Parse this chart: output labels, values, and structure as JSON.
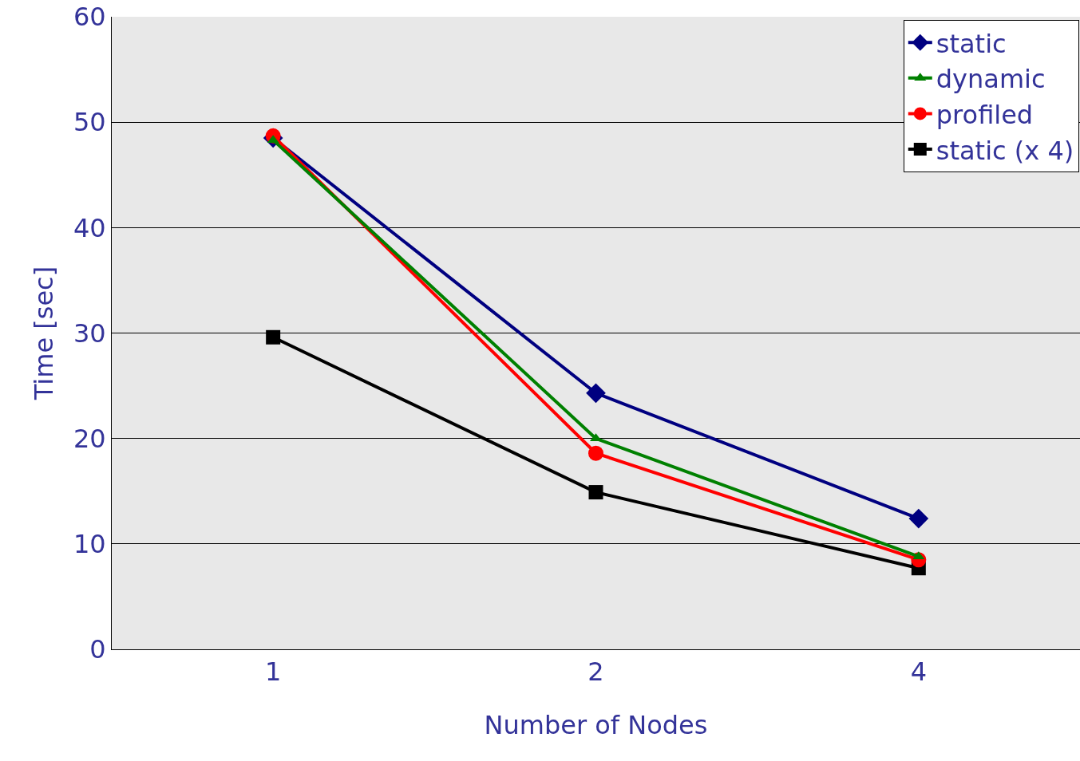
{
  "chart_data": {
    "type": "line",
    "xlabel": "Number of Nodes",
    "ylabel": "Time [sec]",
    "categories": [
      "1",
      "2",
      "4"
    ],
    "series": [
      {
        "name": "static",
        "color": "#000080",
        "marker": "diamond",
        "values": [
          48.5,
          24.3,
          12.4
        ]
      },
      {
        "name": "dynamic",
        "color": "#008000",
        "marker": "triangle",
        "values": [
          48.3,
          20.0,
          8.8
        ]
      },
      {
        "name": "profiled",
        "color": "#ff0000",
        "marker": "circle",
        "values": [
          48.7,
          18.6,
          8.5
        ]
      },
      {
        "name": "static (x 4)",
        "color": "#000000",
        "marker": "square",
        "values": [
          29.6,
          14.9,
          7.7
        ]
      }
    ],
    "ylim": [
      0,
      60
    ],
    "yticks": [
      0,
      10,
      20,
      30,
      40,
      50,
      60
    ],
    "grid": "y",
    "legend": "top right",
    "line_style": "solid"
  }
}
